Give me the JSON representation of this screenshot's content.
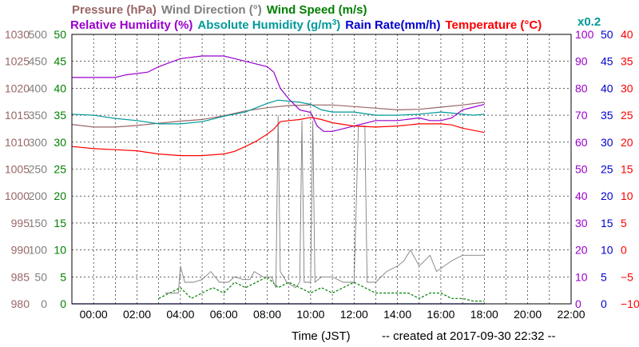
{
  "header": {
    "row1": [
      {
        "label": "Pressure (hPa)",
        "color": "#996666"
      },
      {
        "label": "Wind Direction (°)",
        "color": "#808080"
      },
      {
        "label": "Wind Speed (m/s)",
        "color": "#008000"
      }
    ],
    "row2": [
      {
        "label": "Relative Humidity (%)",
        "color": "#9900cc"
      },
      {
        "label": "Absolute Humidity (g/m",
        "sup": "3",
        "tail": ")",
        "color": "#009999"
      },
      {
        "label": "Rain Rate(mm/h)",
        "color": "#0000cc"
      },
      {
        "label": "Temperature (°C)",
        "color": "#ff0000"
      }
    ],
    "scale_note": "x0.2"
  },
  "footer": {
    "xlabel": "Time (JST)",
    "created": "-- created at 2017-09-30 22:32 --"
  },
  "chart_data": {
    "type": "line",
    "xlabel": "Time (JST)",
    "x_unit": "hour",
    "xlim": [
      -1,
      22
    ],
    "x_ticks": [
      "00:00",
      "02:00",
      "04:00",
      "06:00",
      "08:00",
      "10:00",
      "12:00",
      "14:00",
      "16:00",
      "18:00",
      "20:00",
      "22:00"
    ],
    "grid": true,
    "axes": {
      "pressure": {
        "label": "Pressure (hPa)",
        "ticks": [
          980,
          985,
          990,
          995,
          1000,
          1005,
          1010,
          1015,
          1020,
          1025,
          1030
        ],
        "range": [
          980,
          1030
        ],
        "color": "#996666"
      },
      "wind_direction": {
        "label": "Wind Direction (°)",
        "ticks": [
          0,
          50,
          100,
          150,
          200,
          250,
          300,
          350,
          400,
          450,
          500
        ],
        "range": [
          0,
          500
        ],
        "color": "#808080"
      },
      "wind_speed": {
        "label": "Wind Speed (m/s)",
        "ticks": [
          0,
          5,
          10,
          15,
          20,
          25,
          30,
          35,
          40,
          45,
          50
        ],
        "range": [
          0,
          50
        ],
        "color": "#008000"
      },
      "relative_humidity": {
        "label": "Relative Humidity (%)",
        "ticks": [
          0,
          10,
          20,
          30,
          40,
          50,
          60,
          70,
          80,
          90,
          100
        ],
        "range": [
          0,
          100
        ],
        "color": "#9900cc"
      },
      "rain_rate": {
        "label": "Rain Rate(mm/h)",
        "ticks": [
          0,
          5,
          10,
          15,
          20,
          25,
          30,
          35,
          40,
          45,
          50
        ],
        "range": [
          0,
          50
        ],
        "color": "#0000cc"
      },
      "temperature": {
        "label": "Temperature (°C)",
        "ticks": [
          "−10",
          "−5",
          "0",
          "5",
          "10",
          "15",
          "20",
          "25",
          "30",
          "35",
          "40"
        ],
        "range": [
          -10,
          40
        ],
        "color": "#ff0000"
      }
    },
    "series": [
      {
        "name": "Pressure (hPa)",
        "axis": "pressure",
        "color": "#996666",
        "points": [
          [
            -1,
            1013.3
          ],
          [
            0,
            1012.8
          ],
          [
            1,
            1012.8
          ],
          [
            2,
            1013.1
          ],
          [
            3,
            1013.5
          ],
          [
            4,
            1013.9
          ],
          [
            5,
            1014.2
          ],
          [
            6,
            1014.9
          ],
          [
            7,
            1015.8
          ],
          [
            8,
            1016.4
          ],
          [
            9,
            1016.8
          ],
          [
            10,
            1016.9
          ],
          [
            11,
            1016.9
          ],
          [
            12,
            1016.6
          ],
          [
            13,
            1016.3
          ],
          [
            14,
            1016.0
          ],
          [
            15,
            1016.1
          ],
          [
            16,
            1016.5
          ],
          [
            17,
            1016.9
          ],
          [
            18,
            1017.4
          ]
        ]
      },
      {
        "name": "Temperature (°C)",
        "axis": "temperature",
        "color": "#ff0000",
        "points": [
          [
            -1,
            19.2
          ],
          [
            0,
            18.8
          ],
          [
            1,
            18.6
          ],
          [
            2,
            18.4
          ],
          [
            3,
            17.8
          ],
          [
            4,
            17.5
          ],
          [
            5,
            17.5
          ],
          [
            6,
            17.8
          ],
          [
            6.5,
            18.3
          ],
          [
            7,
            19.2
          ],
          [
            7.5,
            20.2
          ],
          [
            8,
            21.5
          ],
          [
            8.3,
            22.4
          ],
          [
            8.6,
            23.8
          ],
          [
            9,
            24.0
          ],
          [
            9.5,
            24.2
          ],
          [
            10,
            24.6
          ],
          [
            10.5,
            24.2
          ],
          [
            11,
            23.6
          ],
          [
            12,
            23.0
          ],
          [
            13,
            22.8
          ],
          [
            14,
            23.0
          ],
          [
            15,
            23.4
          ],
          [
            16,
            23.4
          ],
          [
            16.5,
            23.2
          ],
          [
            17,
            22.6
          ],
          [
            18,
            21.8
          ]
        ]
      },
      {
        "name": "Relative Humidity (%)",
        "axis": "relative_humidity",
        "color": "#9900cc",
        "points": [
          [
            -1,
            84
          ],
          [
            0,
            84
          ],
          [
            1,
            84
          ],
          [
            1.5,
            85
          ],
          [
            2.5,
            86
          ],
          [
            3,
            88
          ],
          [
            4,
            91
          ],
          [
            5,
            92
          ],
          [
            6,
            92
          ],
          [
            6.5,
            91
          ],
          [
            7,
            90
          ],
          [
            7.5,
            89
          ],
          [
            8,
            88
          ],
          [
            8.3,
            86
          ],
          [
            8.6,
            80
          ],
          [
            9,
            76
          ],
          [
            9.5,
            72
          ],
          [
            10,
            71
          ],
          [
            10.3,
            66
          ],
          [
            10.6,
            64
          ],
          [
            11,
            64
          ],
          [
            11.5,
            65
          ],
          [
            12,
            66
          ],
          [
            12.5,
            67
          ],
          [
            13,
            68
          ],
          [
            14,
            68
          ],
          [
            15,
            69
          ],
          [
            15.5,
            68
          ],
          [
            16,
            68
          ],
          [
            16.5,
            69
          ],
          [
            17,
            72
          ],
          [
            17.5,
            73
          ],
          [
            18,
            74
          ]
        ]
      },
      {
        "name": "Absolute Humidity (g/m3)",
        "axis": "rain_rate",
        "scale": 0.2,
        "color": "#009999",
        "points": [
          [
            -1,
            35.2
          ],
          [
            0,
            35.0
          ],
          [
            1,
            34.4
          ],
          [
            2,
            34.0
          ],
          [
            3,
            33.4
          ],
          [
            4,
            33.4
          ],
          [
            5,
            33.8
          ],
          [
            6,
            34.8
          ],
          [
            7,
            35.6
          ],
          [
            7.5,
            36.4
          ],
          [
            8,
            37.2
          ],
          [
            8.5,
            37.8
          ],
          [
            9,
            37.6
          ],
          [
            9.5,
            37.4
          ],
          [
            10,
            37.0
          ],
          [
            10.5,
            36.0
          ],
          [
            11,
            35.6
          ],
          [
            12,
            35.6
          ],
          [
            13,
            35.0
          ],
          [
            14,
            35.0
          ],
          [
            15,
            35.2
          ],
          [
            16,
            35.6
          ],
          [
            16.5,
            35.4
          ],
          [
            17,
            35.2
          ],
          [
            17.5,
            35.0
          ],
          [
            18,
            35.2
          ]
        ]
      },
      {
        "name": "Wind Direction (°)",
        "axis": "wind_direction",
        "color": "#808080",
        "points": [
          [
            3.3,
            20
          ],
          [
            3.9,
            20
          ],
          [
            4.0,
            70
          ],
          [
            4.2,
            40
          ],
          [
            4.6,
            40
          ],
          [
            5,
            45
          ],
          [
            5.4,
            60
          ],
          [
            5.8,
            40
          ],
          [
            6.2,
            40
          ],
          [
            6.5,
            50
          ],
          [
            6.9,
            45
          ],
          [
            7.2,
            45
          ],
          [
            7.4,
            60
          ],
          [
            7.8,
            50
          ],
          [
            8.2,
            50
          ],
          [
            8.4,
            30
          ],
          [
            8.5,
            350
          ],
          [
            8.6,
            60
          ],
          [
            8.9,
            40
          ],
          [
            9.3,
            30
          ],
          [
            9.5,
            40
          ],
          [
            9.6,
            340
          ],
          [
            9.7,
            40
          ],
          [
            10.0,
            40
          ],
          [
            10.1,
            340
          ],
          [
            10.2,
            40
          ],
          [
            10.5,
            50
          ],
          [
            11.0,
            50
          ],
          [
            11.5,
            40
          ],
          [
            12.0,
            40
          ],
          [
            12.2,
            330
          ],
          [
            12.3,
            330
          ],
          [
            12.5,
            330
          ],
          [
            12.6,
            40
          ],
          [
            13.0,
            40
          ],
          [
            13.5,
            60
          ],
          [
            14.0,
            70
          ],
          [
            14.3,
            80
          ],
          [
            14.6,
            100
          ],
          [
            15.0,
            70
          ],
          [
            15.5,
            90
          ],
          [
            15.8,
            60
          ],
          [
            16.5,
            80
          ],
          [
            17.0,
            90
          ],
          [
            17.5,
            90
          ],
          [
            18.0,
            90
          ]
        ]
      },
      {
        "name": "Wind Speed (m/s)",
        "axis": "wind_speed",
        "color": "#008000",
        "style": "dashed",
        "points": [
          [
            3,
            1
          ],
          [
            3.5,
            2
          ],
          [
            4,
            3
          ],
          [
            4.5,
            1
          ],
          [
            5,
            2
          ],
          [
            5.5,
            3
          ],
          [
            6,
            2
          ],
          [
            6.5,
            4
          ],
          [
            7,
            3
          ],
          [
            7.5,
            4
          ],
          [
            8,
            5
          ],
          [
            8.5,
            3
          ],
          [
            9,
            4
          ],
          [
            9.5,
            3
          ],
          [
            10,
            2
          ],
          [
            10.5,
            3
          ],
          [
            11,
            2
          ],
          [
            11.5,
            3
          ],
          [
            12,
            4
          ],
          [
            12.5,
            3
          ],
          [
            13,
            2
          ],
          [
            13.5,
            2
          ],
          [
            14,
            2
          ],
          [
            14.5,
            2
          ],
          [
            15,
            1
          ],
          [
            15.5,
            2
          ],
          [
            16,
            2
          ],
          [
            16.5,
            1
          ],
          [
            17,
            1
          ],
          [
            17.5,
            0.5
          ],
          [
            18,
            0.5
          ]
        ]
      },
      {
        "name": "Rain Rate(mm/h)",
        "axis": "rain_rate",
        "color": "#0000cc",
        "points": [
          [
            -1,
            0
          ],
          [
            18,
            0
          ]
        ]
      }
    ]
  }
}
